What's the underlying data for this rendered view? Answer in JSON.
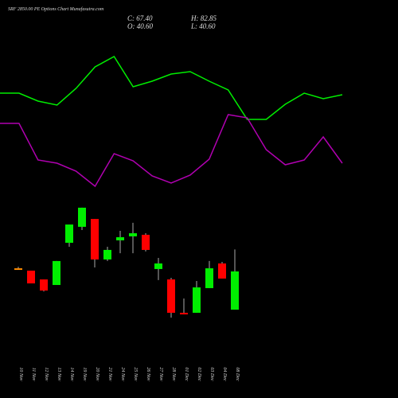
{
  "chart_data": [
    {
      "type": "line",
      "title": "SRF 2850.00  PE Options Chart Munafasutra.com",
      "x": [
        0,
        1,
        2,
        3,
        4,
        5,
        6,
        7,
        8,
        9,
        10,
        11,
        12,
        13,
        14,
        15,
        16,
        17,
        18
      ],
      "xlim": [
        0,
        18
      ],
      "ylim": [
        0,
        190
      ],
      "series": [
        {
          "color": "#00ee00",
          "values": [
            133,
            133,
            123,
            118,
            139,
            166,
            179,
            141,
            148,
            157,
            160,
            148,
            137,
            100,
            100,
            119,
            133,
            126,
            131
          ]
        },
        {
          "color": "#b000b0",
          "values": [
            95,
            95,
            49,
            45,
            35,
            16,
            57,
            48,
            29,
            20,
            30,
            50,
            106,
            102,
            62,
            43,
            49,
            78,
            45
          ]
        }
      ]
    },
    {
      "type": "candlestick",
      "header": [
        "C: 67.40",
        "H: 82.85",
        "O: 40.60",
        "L: 40.60"
      ],
      "categories": [
        "10 Nov",
        "11 Nov",
        "12 Nov",
        "13 Nov",
        "14 Nov",
        "19 Nov",
        "20 Nov",
        "21 Nov",
        "24 Nov",
        "25 Nov",
        "26 Nov",
        "27 Nov",
        "28 Nov",
        "01 Dec",
        "02 Dec",
        "03 Dec",
        "04 Dec",
        "08 Dec"
      ],
      "open": [
        69.6,
        67.96,
        61.8,
        57.9,
        87.5,
        98.7,
        104.2,
        75.8,
        89.2,
        92.0,
        93.1,
        69.1,
        61.8,
        38.4,
        38.4,
        55.7,
        73.0,
        40.6
      ],
      "high": [
        70.7,
        67.96,
        61.8,
        74.7,
        100.3,
        112.1,
        104.2,
        84.7,
        95.9,
        101.5,
        94.2,
        76.9,
        62.9,
        48.4,
        60.7,
        74.7,
        74.1,
        82.85
      ],
      "low": [
        68.5,
        59.0,
        53.4,
        57.9,
        84.7,
        96.4,
        70.2,
        74.7,
        80.2,
        80.2,
        81.4,
        61.3,
        35.0,
        37.3,
        38.4,
        55.7,
        62.4,
        40.6
      ],
      "close": [
        69.6,
        59.0,
        54.0,
        74.7,
        100.3,
        112.1,
        75.8,
        82.5,
        91.4,
        94.2,
        82.5,
        73.0,
        38.4,
        37.3,
        56.2,
        69.6,
        62.4,
        67.4
      ],
      "ylim": [
        23.3,
        118.2
      ],
      "up_color": "#00ee00",
      "down_color": "#ff0000",
      "flat_color": "#ff8c00"
    }
  ]
}
